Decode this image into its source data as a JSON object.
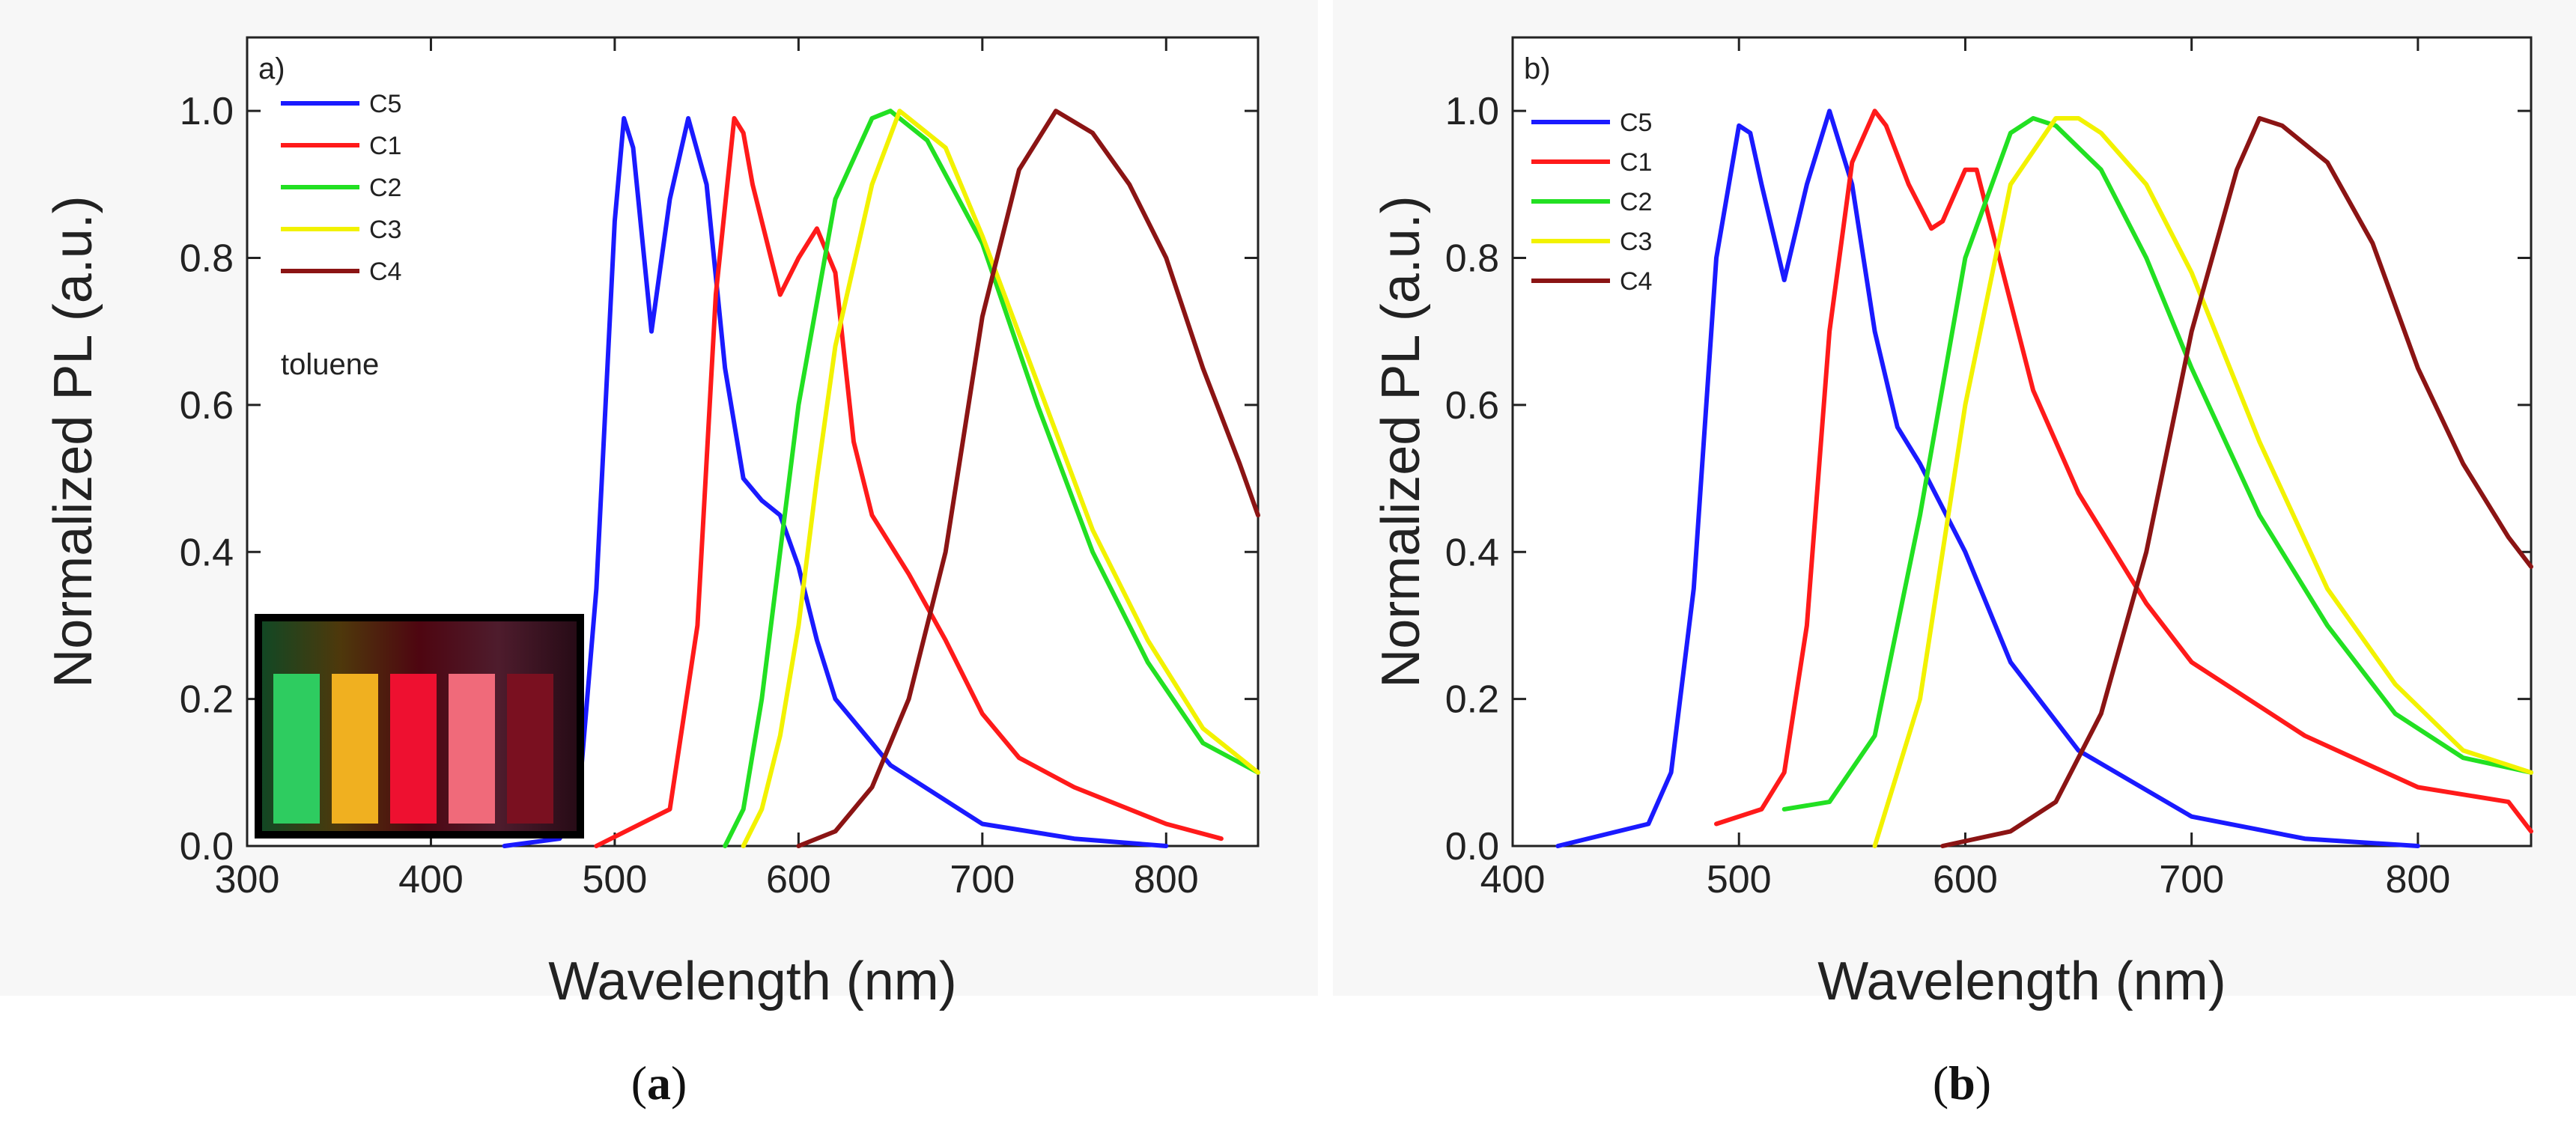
{
  "chart_data": [
    {
      "type": "line",
      "panel_label": "a)",
      "caption_open": "(",
      "caption_letter": "a",
      "caption_close": ")",
      "xlabel": "Wavelength (nm)",
      "ylabel": "Normalized PL (a.u.)",
      "xlim": [
        300,
        850
      ],
      "ylim": [
        0,
        1.1
      ],
      "xticks": [
        300,
        400,
        500,
        600,
        700,
        800
      ],
      "yticks": [
        "0.0",
        "0.2",
        "0.4",
        "0.6",
        "0.8",
        "1.0"
      ],
      "annotation": "toluene",
      "inset": "photo of five cuvettes (green, yellow, red, pink, dark red) under UV light",
      "series": [
        {
          "name": "C5",
          "color": "#1a1aff",
          "x": [
            440,
            470,
            480,
            490,
            500,
            505,
            510,
            520,
            530,
            540,
            550,
            560,
            570,
            580,
            590,
            600,
            610,
            620,
            650,
            700,
            750,
            800
          ],
          "y": [
            0,
            0.01,
            0.05,
            0.35,
            0.85,
            0.99,
            0.95,
            0.7,
            0.88,
            0.99,
            0.9,
            0.65,
            0.5,
            0.47,
            0.45,
            0.38,
            0.28,
            0.2,
            0.11,
            0.03,
            0.01,
            0
          ]
        },
        {
          "name": "C1",
          "color": "#ff1a1a",
          "x": [
            490,
            530,
            545,
            555,
            565,
            570,
            575,
            590,
            600,
            610,
            620,
            630,
            640,
            660,
            680,
            700,
            720,
            750,
            800,
            830
          ],
          "y": [
            0,
            0.05,
            0.3,
            0.75,
            0.99,
            0.97,
            0.9,
            0.75,
            0.8,
            0.84,
            0.78,
            0.55,
            0.45,
            0.37,
            0.28,
            0.18,
            0.12,
            0.08,
            0.03,
            0.01
          ]
        },
        {
          "name": "C2",
          "color": "#22e022",
          "x": [
            560,
            570,
            580,
            590,
            600,
            620,
            640,
            650,
            660,
            670,
            700,
            730,
            760,
            790,
            820,
            850
          ],
          "y": [
            0,
            0.05,
            0.2,
            0.4,
            0.6,
            0.88,
            0.99,
            1.0,
            0.98,
            0.96,
            0.82,
            0.6,
            0.4,
            0.25,
            0.14,
            0.1
          ]
        },
        {
          "name": "C3",
          "color": "#f2f200",
          "x": [
            570,
            580,
            590,
            600,
            610,
            620,
            640,
            655,
            660,
            680,
            700,
            730,
            760,
            790,
            820,
            850
          ],
          "y": [
            0,
            0.05,
            0.15,
            0.3,
            0.5,
            0.68,
            0.9,
            1.0,
            0.99,
            0.95,
            0.83,
            0.63,
            0.43,
            0.28,
            0.16,
            0.1
          ]
        },
        {
          "name": "C4",
          "color": "#8b1414",
          "x": [
            600,
            620,
            640,
            660,
            680,
            700,
            720,
            740,
            760,
            780,
            800,
            820,
            840,
            850
          ],
          "y": [
            0,
            0.02,
            0.08,
            0.2,
            0.4,
            0.72,
            0.92,
            1.0,
            0.97,
            0.9,
            0.8,
            0.65,
            0.52,
            0.45
          ]
        }
      ]
    },
    {
      "type": "line",
      "panel_label": "b)",
      "caption_open": "(",
      "caption_letter": "b",
      "caption_close": ")",
      "xlabel": "Wavelength (nm)",
      "ylabel": "Normalized PL (a.u.)",
      "xlim": [
        400,
        850
      ],
      "ylim": [
        0,
        1.1
      ],
      "xticks": [
        400,
        500,
        600,
        700,
        800
      ],
      "yticks": [
        "0.0",
        "0.2",
        "0.4",
        "0.6",
        "0.8",
        "1.0"
      ],
      "series": [
        {
          "name": "C5",
          "color": "#1a1aff",
          "x": [
            420,
            460,
            470,
            480,
            490,
            500,
            505,
            510,
            520,
            530,
            540,
            550,
            560,
            570,
            580,
            600,
            620,
            650,
            700,
            750,
            800
          ],
          "y": [
            0,
            0.03,
            0.1,
            0.35,
            0.8,
            0.98,
            0.97,
            0.9,
            0.77,
            0.9,
            1.0,
            0.9,
            0.7,
            0.57,
            0.52,
            0.4,
            0.25,
            0.13,
            0.04,
            0.01,
            0
          ]
        },
        {
          "name": "C1",
          "color": "#ff1a1a",
          "x": [
            490,
            510,
            520,
            530,
            540,
            550,
            560,
            565,
            575,
            585,
            590,
            600,
            605,
            615,
            630,
            650,
            680,
            700,
            750,
            800,
            840,
            850
          ],
          "y": [
            0.03,
            0.05,
            0.1,
            0.3,
            0.7,
            0.93,
            1.0,
            0.98,
            0.9,
            0.84,
            0.85,
            0.92,
            0.92,
            0.8,
            0.62,
            0.48,
            0.33,
            0.25,
            0.15,
            0.08,
            0.06,
            0.02
          ]
        },
        {
          "name": "C2",
          "color": "#22e022",
          "x": [
            520,
            540,
            560,
            580,
            600,
            620,
            630,
            640,
            660,
            680,
            700,
            730,
            760,
            790,
            820,
            850
          ],
          "y": [
            0.05,
            0.06,
            0.15,
            0.45,
            0.8,
            0.97,
            0.99,
            0.98,
            0.92,
            0.8,
            0.65,
            0.45,
            0.3,
            0.18,
            0.12,
            0.1
          ]
        },
        {
          "name": "C3",
          "color": "#f2f200",
          "x": [
            560,
            580,
            600,
            620,
            640,
            650,
            660,
            680,
            700,
            730,
            760,
            790,
            820,
            850
          ],
          "y": [
            0,
            0.2,
            0.6,
            0.9,
            0.99,
            0.99,
            0.97,
            0.9,
            0.78,
            0.55,
            0.35,
            0.22,
            0.13,
            0.1
          ]
        },
        {
          "name": "C4",
          "color": "#8b1414",
          "x": [
            590,
            620,
            640,
            660,
            680,
            700,
            720,
            730,
            740,
            760,
            780,
            800,
            820,
            840,
            850
          ],
          "y": [
            0,
            0.02,
            0.06,
            0.18,
            0.4,
            0.7,
            0.92,
            0.99,
            0.98,
            0.93,
            0.82,
            0.65,
            0.52,
            0.42,
            0.38
          ]
        }
      ]
    }
  ]
}
